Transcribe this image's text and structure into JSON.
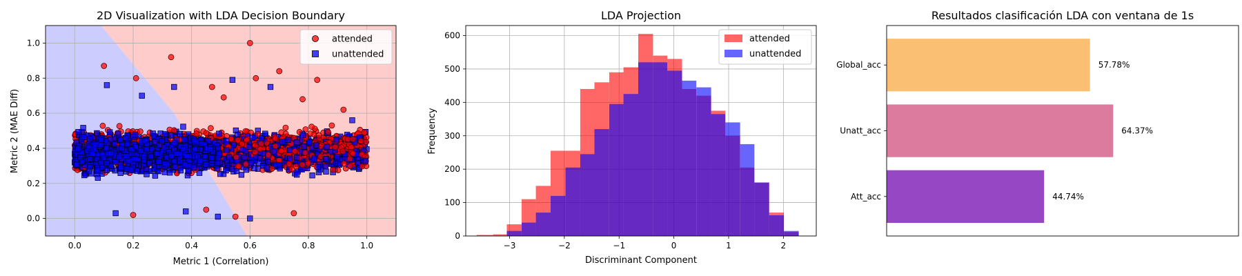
{
  "colors": {
    "attended": "#ff0000",
    "unattended": "#0000ff",
    "region_attended": "#ffcccc",
    "region_unattended": "#ccccff",
    "hist_overlap": "#6a24c4",
    "bar_global": "#fbbf73",
    "bar_unatt": "#dc7b9d",
    "bar_att": "#9647c3"
  },
  "chart_data": [
    {
      "type": "scatter",
      "title": "2D Visualization with LDA Decision Boundary",
      "xlabel": "Metric 1 (Correlation)",
      "ylabel": "Metric 2 (MAE Diff)",
      "xlim": [
        -0.1,
        1.1
      ],
      "ylim": [
        -0.1,
        1.1
      ],
      "xticks": [
        "0.0",
        "0.2",
        "0.4",
        "0.6",
        "0.8",
        "1.0"
      ],
      "yticks": [
        "0.0",
        "0.2",
        "0.4",
        "0.6",
        "0.8",
        "1.0"
      ],
      "grid": true,
      "legend": "top-right",
      "decision_boundary": {
        "top": [
          [
            0.09,
            1.1
          ],
          [
            0.34,
            0.6
          ]
        ],
        "bottom": [
          [
            0.34,
            0.6
          ],
          [
            0.59,
            -0.1
          ]
        ]
      },
      "series": [
        {
          "name": "attended",
          "marker": "circle",
          "cluster": {
            "x_range": [
              0.0,
              1.0
            ],
            "y_center": 0.39,
            "y_spread": 0.2
          },
          "outliers": [
            [
              0.6,
              1.0
            ],
            [
              0.33,
              0.92
            ],
            [
              0.1,
              0.87
            ],
            [
              0.7,
              0.84
            ],
            [
              0.62,
              0.8
            ],
            [
              0.83,
              0.79
            ],
            [
              0.92,
              0.62
            ],
            [
              0.78,
              0.68
            ],
            [
              0.21,
              0.8
            ],
            [
              0.47,
              0.75
            ],
            [
              0.51,
              0.69
            ],
            [
              0.88,
              0.53
            ],
            [
              0.2,
              0.02
            ],
            [
              0.55,
              0.01
            ],
            [
              0.45,
              0.05
            ],
            [
              0.75,
              0.03
            ]
          ]
        },
        {
          "name": "unattended",
          "marker": "square",
          "cluster": {
            "x_range": [
              0.0,
              1.0
            ],
            "y_center": 0.37,
            "y_spread": 0.2
          },
          "outliers": [
            [
              0.54,
              0.79
            ],
            [
              0.34,
              0.75
            ],
            [
              0.67,
              0.75
            ],
            [
              0.11,
              0.76
            ],
            [
              0.23,
              0.7
            ],
            [
              0.14,
              0.03
            ],
            [
              0.38,
              0.04
            ],
            [
              0.49,
              0.01
            ],
            [
              0.6,
              0.0
            ],
            [
              0.95,
              0.56
            ]
          ]
        }
      ]
    },
    {
      "type": "bar",
      "subtype": "histogram",
      "title": "LDA Projection",
      "xlabel": "Discriminant Component",
      "ylabel": "Frequency",
      "xlim": [
        -3.8,
        2.6
      ],
      "ylim": [
        0,
        630
      ],
      "xticks": [
        "−3",
        "−2",
        "−1",
        "0",
        "1",
        "2"
      ],
      "yticks": [
        "0",
        "100",
        "200",
        "300",
        "400",
        "500",
        "600"
      ],
      "grid": true,
      "legend": "top-right",
      "series": [
        {
          "name": "attended",
          "bins": [
            [
              -3.6,
              -3.3,
              3
            ],
            [
              -3.3,
              -3.05,
              5
            ],
            [
              -3.05,
              -2.78,
              35
            ],
            [
              -2.78,
              -2.52,
              110
            ],
            [
              -2.52,
              -2.25,
              150
            ],
            [
              -2.25,
              -1.98,
              255
            ],
            [
              -1.98,
              -1.71,
              255
            ],
            [
              -1.71,
              -1.45,
              440
            ],
            [
              -1.45,
              -1.18,
              460
            ],
            [
              -1.18,
              -0.92,
              490
            ],
            [
              -0.92,
              -0.65,
              505
            ],
            [
              -0.65,
              -0.38,
              605
            ],
            [
              -0.38,
              -0.12,
              540
            ],
            [
              -0.12,
              0.15,
              530
            ],
            [
              0.15,
              0.41,
              440
            ],
            [
              0.41,
              0.68,
              420
            ],
            [
              0.68,
              0.94,
              375
            ],
            [
              0.94,
              1.21,
              300
            ],
            [
              1.21,
              1.47,
              205
            ],
            [
              1.47,
              1.74,
              160
            ],
            [
              1.74,
              2.01,
              70
            ],
            [
              2.01,
              2.28,
              12
            ]
          ]
        },
        {
          "name": "unattended",
          "bins": [
            [
              -3.05,
              -2.78,
              15
            ],
            [
              -2.78,
              -2.52,
              40
            ],
            [
              -2.52,
              -2.25,
              70
            ],
            [
              -2.25,
              -1.98,
              120
            ],
            [
              -1.98,
              -1.71,
              205
            ],
            [
              -1.71,
              -1.45,
              245
            ],
            [
              -1.45,
              -1.18,
              320
            ],
            [
              -1.18,
              -0.92,
              395
            ],
            [
              -0.92,
              -0.65,
              425
            ],
            [
              -0.65,
              -0.38,
              520
            ],
            [
              -0.38,
              -0.12,
              520
            ],
            [
              -0.12,
              0.15,
              495
            ],
            [
              0.15,
              0.41,
              465
            ],
            [
              0.41,
              0.68,
              445
            ],
            [
              0.68,
              0.94,
              365
            ],
            [
              0.94,
              1.21,
              340
            ],
            [
              1.21,
              1.47,
              275
            ],
            [
              1.47,
              1.74,
              160
            ],
            [
              1.74,
              2.01,
              62
            ],
            [
              2.01,
              2.28,
              15
            ]
          ]
        }
      ]
    },
    {
      "type": "bar",
      "orientation": "horizontal",
      "title": "Resultados clasificación LDA con ventana de 1s",
      "categories": [
        "Global_acc",
        "Unatt_acc",
        "Att_acc"
      ],
      "values": [
        57.78,
        64.37,
        44.74
      ],
      "value_labels": [
        "57.78%",
        "64.37%",
        "44.74%"
      ],
      "xlim": [
        0,
        100
      ],
      "grid": false
    }
  ]
}
